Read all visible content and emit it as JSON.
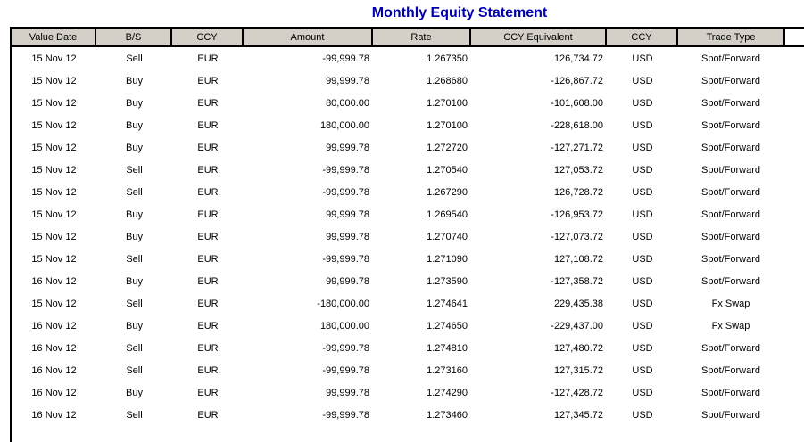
{
  "title": "Monthly Equity Statement",
  "colors": {
    "title_text": "#0000a8",
    "header_bg": "#d4d0c8",
    "border": "#000000",
    "body_bg": "#ffffff"
  },
  "table": {
    "columns": [
      {
        "label": "Value Date",
        "align": "center"
      },
      {
        "label": "B/S",
        "align": "center"
      },
      {
        "label": "CCY",
        "align": "center"
      },
      {
        "label": "Amount",
        "align": "right"
      },
      {
        "label": "Rate",
        "align": "right"
      },
      {
        "label": "CCY Equivalent",
        "align": "right"
      },
      {
        "label": "CCY",
        "align": "center"
      },
      {
        "label": "Trade Type",
        "align": "center"
      }
    ],
    "rows": [
      [
        "15 Nov 12",
        "Sell",
        "EUR",
        "-99,999.78",
        "1.267350",
        "126,734.72",
        "USD",
        "Spot/Forward"
      ],
      [
        "15 Nov 12",
        "Buy",
        "EUR",
        "99,999.78",
        "1.268680",
        "-126,867.72",
        "USD",
        "Spot/Forward"
      ],
      [
        "15 Nov 12",
        "Buy",
        "EUR",
        "80,000.00",
        "1.270100",
        "-101,608.00",
        "USD",
        "Spot/Forward"
      ],
      [
        "15 Nov 12",
        "Buy",
        "EUR",
        "180,000.00",
        "1.270100",
        "-228,618.00",
        "USD",
        "Spot/Forward"
      ],
      [
        "15 Nov 12",
        "Buy",
        "EUR",
        "99,999.78",
        "1.272720",
        "-127,271.72",
        "USD",
        "Spot/Forward"
      ],
      [
        "15 Nov 12",
        "Sell",
        "EUR",
        "-99,999.78",
        "1.270540",
        "127,053.72",
        "USD",
        "Spot/Forward"
      ],
      [
        "15 Nov 12",
        "Sell",
        "EUR",
        "-99,999.78",
        "1.267290",
        "126,728.72",
        "USD",
        "Spot/Forward"
      ],
      [
        "15 Nov 12",
        "Buy",
        "EUR",
        "99,999.78",
        "1.269540",
        "-126,953.72",
        "USD",
        "Spot/Forward"
      ],
      [
        "15 Nov 12",
        "Buy",
        "EUR",
        "99,999.78",
        "1.270740",
        "-127,073.72",
        "USD",
        "Spot/Forward"
      ],
      [
        "15 Nov 12",
        "Sell",
        "EUR",
        "-99,999.78",
        "1.271090",
        "127,108.72",
        "USD",
        "Spot/Forward"
      ],
      [
        "16 Nov 12",
        "Buy",
        "EUR",
        "99,999.78",
        "1.273590",
        "-127,358.72",
        "USD",
        "Spot/Forward"
      ],
      [
        "15 Nov 12",
        "Sell",
        "EUR",
        "-180,000.00",
        "1.274641",
        "229,435.38",
        "USD",
        "Fx Swap"
      ],
      [
        "16 Nov 12",
        "Buy",
        "EUR",
        "180,000.00",
        "1.274650",
        "-229,437.00",
        "USD",
        "Fx Swap"
      ],
      [
        "16 Nov 12",
        "Sell",
        "EUR",
        "-99,999.78",
        "1.274810",
        "127,480.72",
        "USD",
        "Spot/Forward"
      ],
      [
        "16 Nov 12",
        "Sell",
        "EUR",
        "-99,999.78",
        "1.273160",
        "127,315.72",
        "USD",
        "Spot/Forward"
      ],
      [
        "16 Nov 12",
        "Buy",
        "EUR",
        "99,999.78",
        "1.274290",
        "-127,428.72",
        "USD",
        "Spot/Forward"
      ],
      [
        "16 Nov 12",
        "Sell",
        "EUR",
        "-99,999.78",
        "1.273460",
        "127,345.72",
        "USD",
        "Spot/Forward"
      ]
    ]
  }
}
